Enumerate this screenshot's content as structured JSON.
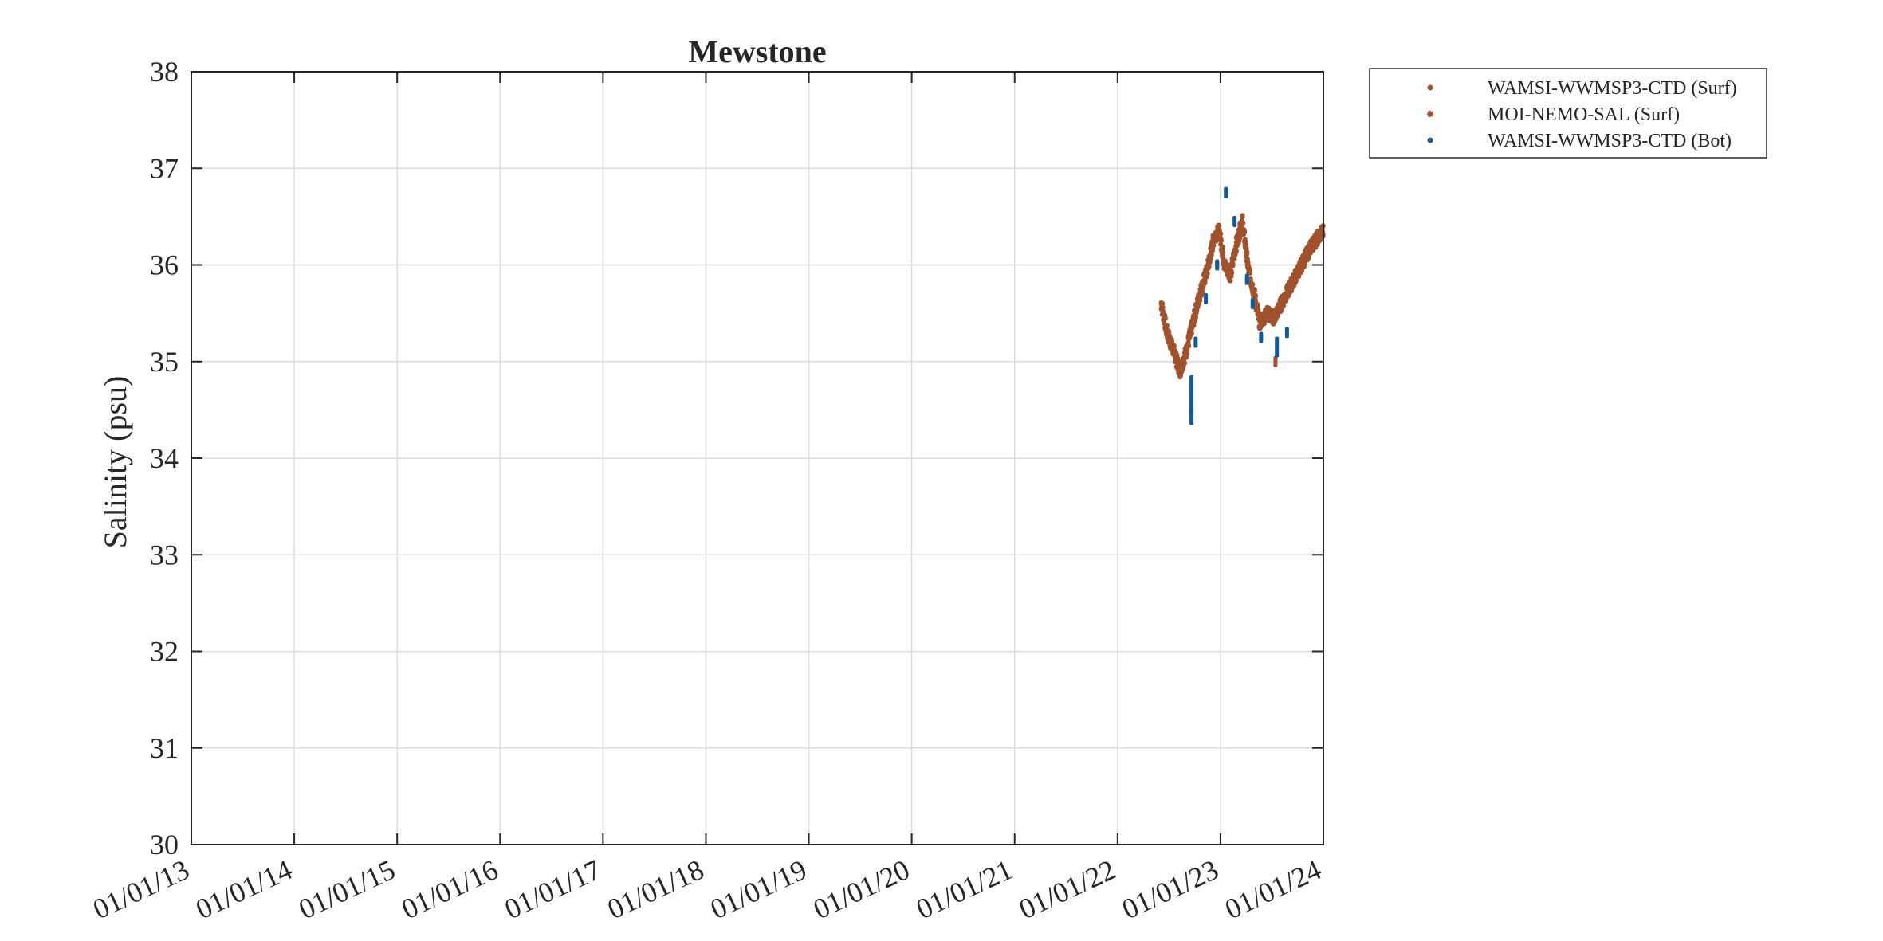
{
  "chart_data": {
    "type": "scatter",
    "title": "Mewstone",
    "xlabel": "",
    "ylabel": "Salinity (psu)",
    "ylim": [
      30,
      38
    ],
    "yticks": [
      30,
      31,
      32,
      33,
      34,
      35,
      36,
      37,
      38
    ],
    "xlim": [
      "2013-01-01",
      "2024-01-01"
    ],
    "xtick_labels": [
      "01/01/13",
      "01/01/14",
      "01/01/15",
      "01/01/16",
      "01/01/17",
      "01/01/18",
      "01/01/19",
      "01/01/20",
      "01/01/21",
      "01/01/22",
      "01/01/23",
      "01/01/24"
    ],
    "grid": true,
    "legend_position": "outside-top-right",
    "series": [
      {
        "name": "WAMSI-WWMSP3-CTD (Surf)",
        "marker": "dot",
        "color": "#A0522D",
        "points": [
          {
            "x": "2022-09-20",
            "y": 34.5
          },
          {
            "x": "2022-12-20",
            "y": 36.0
          },
          {
            "x": "2023-03-10",
            "y": 36.4
          },
          {
            "x": "2023-07-15",
            "y": 35.0
          }
        ]
      },
      {
        "name": "MOI-NEMO-SAL (Surf)",
        "marker": "asterisk",
        "color": "#A0522D",
        "trace": [
          {
            "x": "2022-06-05",
            "y": 35.6
          },
          {
            "x": "2022-06-25",
            "y": 35.3
          },
          {
            "x": "2022-07-20",
            "y": 35.1
          },
          {
            "x": "2022-08-10",
            "y": 34.9
          },
          {
            "x": "2022-09-01",
            "y": 35.1
          },
          {
            "x": "2022-09-25",
            "y": 35.4
          },
          {
            "x": "2022-10-20",
            "y": 35.7
          },
          {
            "x": "2022-11-15",
            "y": 35.95
          },
          {
            "x": "2022-12-10",
            "y": 36.3
          },
          {
            "x": "2022-12-28",
            "y": 36.35
          },
          {
            "x": "2023-01-15",
            "y": 36.0
          },
          {
            "x": "2023-02-05",
            "y": 35.9
          },
          {
            "x": "2023-02-25",
            "y": 36.2
          },
          {
            "x": "2023-03-20",
            "y": 36.45
          },
          {
            "x": "2023-04-10",
            "y": 35.95
          },
          {
            "x": "2023-05-01",
            "y": 35.7
          },
          {
            "x": "2023-05-20",
            "y": 35.4
          },
          {
            "x": "2023-06-15",
            "y": 35.5
          },
          {
            "x": "2023-07-10",
            "y": 35.45
          },
          {
            "x": "2023-08-05",
            "y": 35.6
          },
          {
            "x": "2023-09-10",
            "y": 35.8
          },
          {
            "x": "2023-10-15",
            "y": 36.0
          },
          {
            "x": "2023-11-20",
            "y": 36.2
          },
          {
            "x": "2023-12-31",
            "y": 36.35
          }
        ]
      },
      {
        "name": "WAMSI-WWMSP3-CTD (Bot)",
        "marker": "dot",
        "color": "#0E5A9E",
        "points": [
          {
            "x": "2022-09-20",
            "y": 34.4
          },
          {
            "x": "2022-09-20",
            "y": 34.5
          },
          {
            "x": "2022-09-20",
            "y": 34.6
          },
          {
            "x": "2022-09-20",
            "y": 34.7
          },
          {
            "x": "2022-09-20",
            "y": 34.8
          },
          {
            "x": "2022-10-05",
            "y": 35.2
          },
          {
            "x": "2022-11-10",
            "y": 35.65
          },
          {
            "x": "2022-12-20",
            "y": 36.0
          },
          {
            "x": "2023-01-20",
            "y": 36.75
          },
          {
            "x": "2023-02-20",
            "y": 36.45
          },
          {
            "x": "2023-04-05",
            "y": 35.85
          },
          {
            "x": "2023-04-25",
            "y": 35.6
          },
          {
            "x": "2023-05-25",
            "y": 35.25
          },
          {
            "x": "2023-07-20",
            "y": 35.1
          },
          {
            "x": "2023-07-20",
            "y": 35.2
          },
          {
            "x": "2023-08-25",
            "y": 35.3
          }
        ]
      }
    ]
  }
}
